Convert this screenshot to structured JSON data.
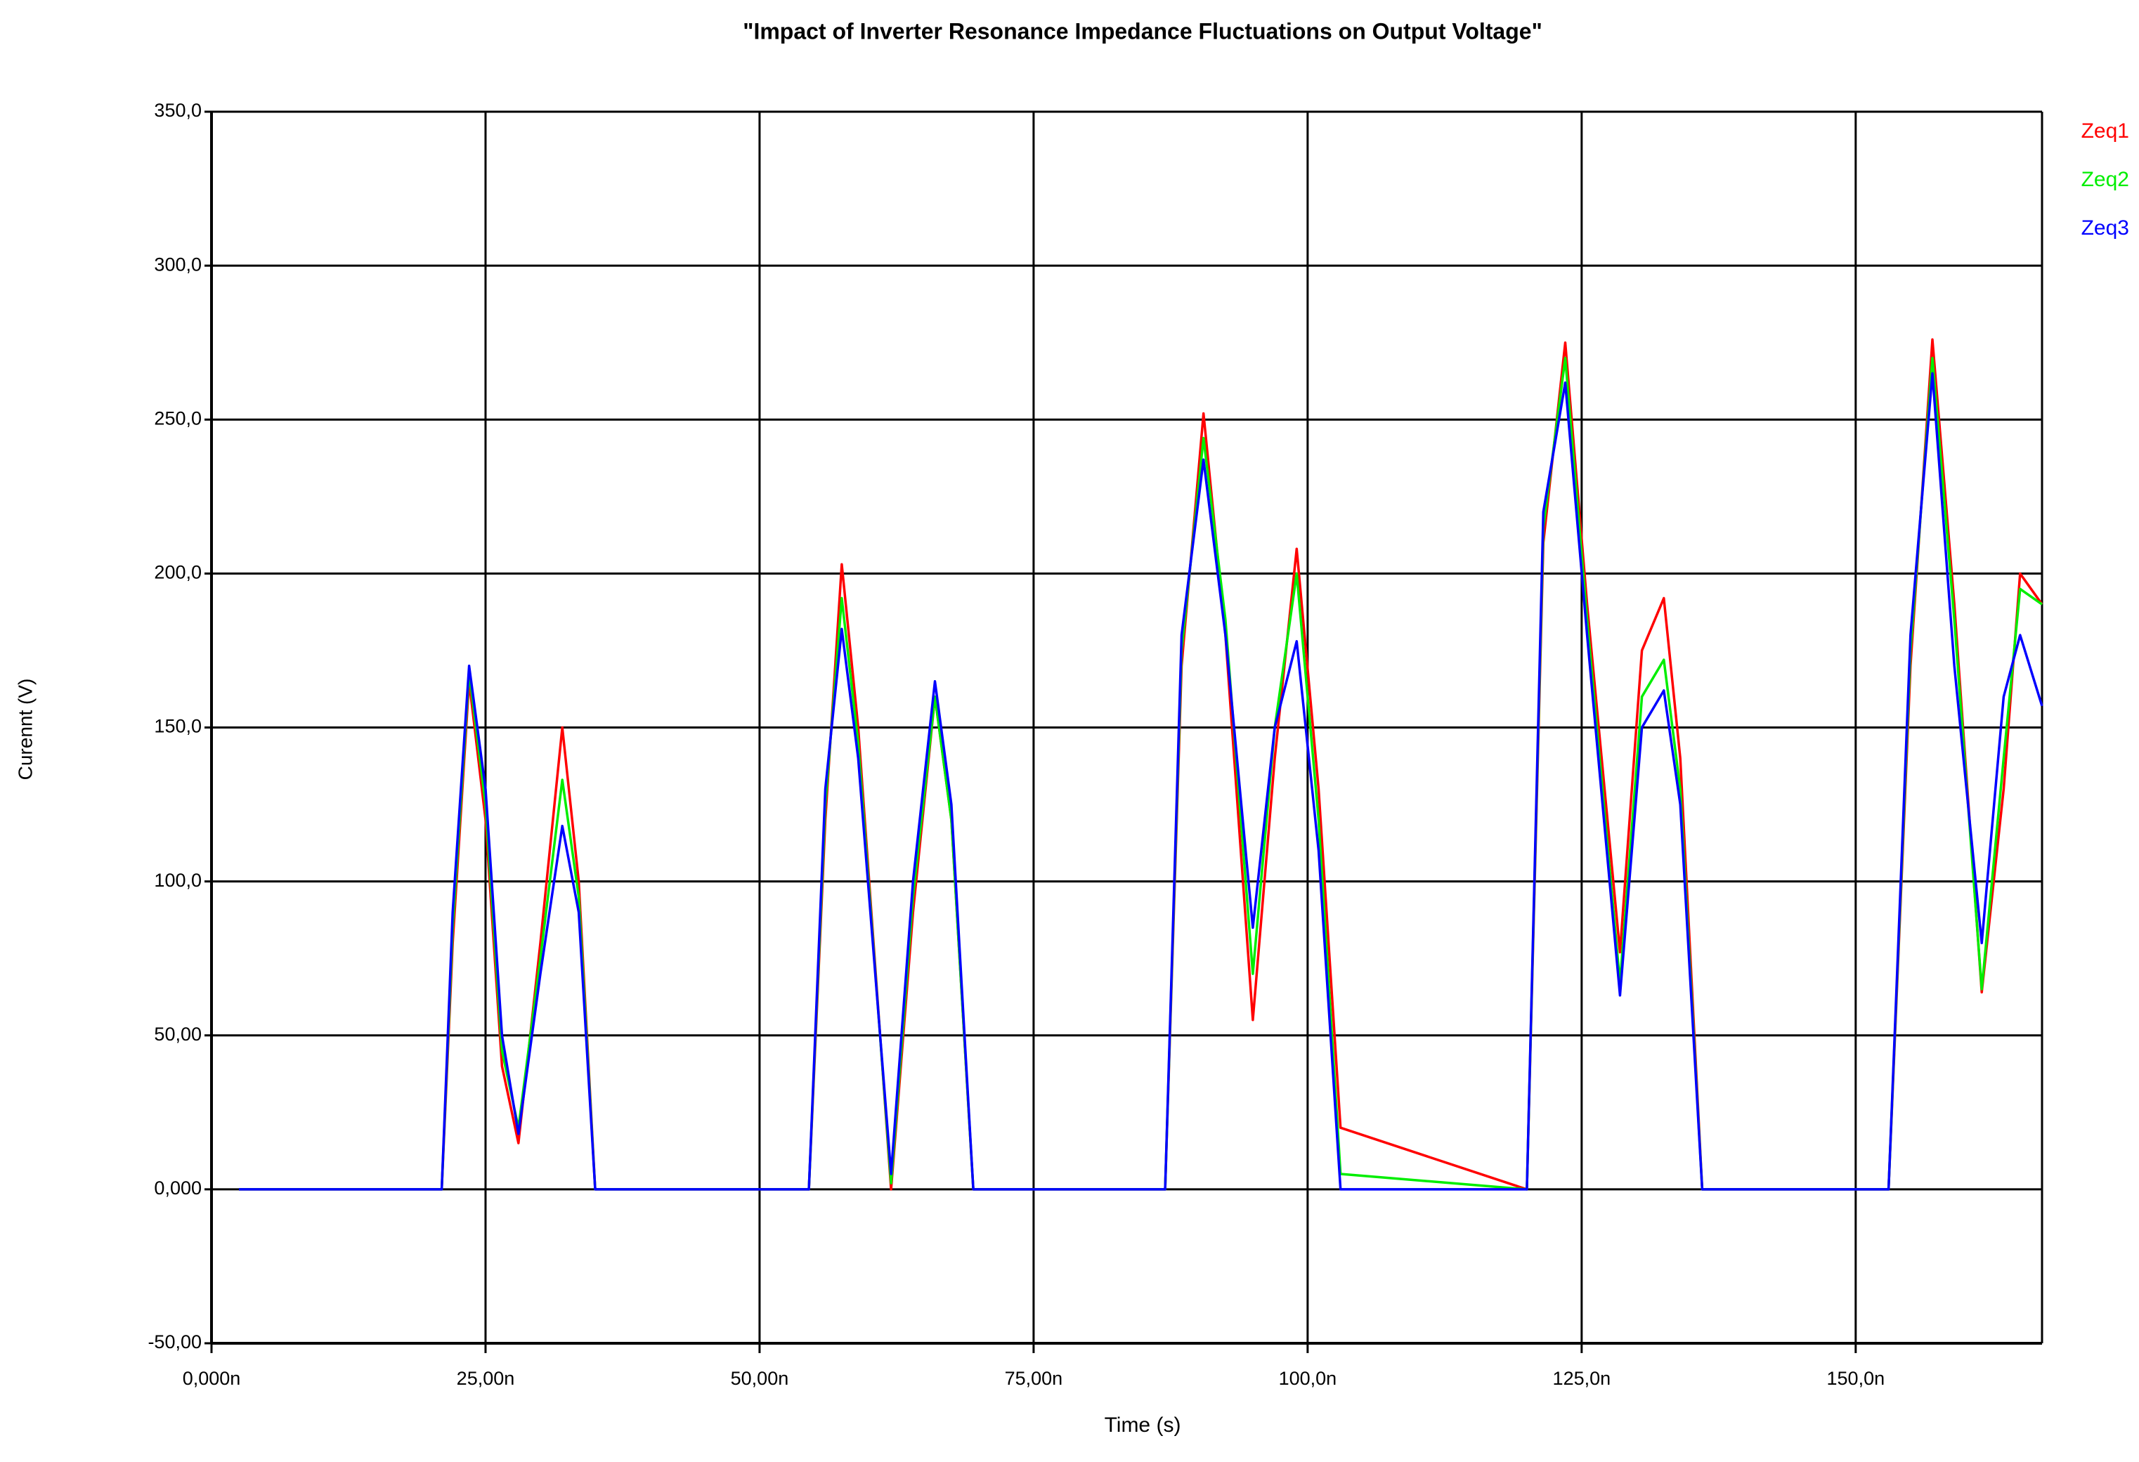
{
  "chart_data": {
    "type": "line",
    "title": "\"Impact of Inverter Resonance Impedance Fluctuations on Output Voltage\"",
    "x_label": "Time (s)",
    "y_label": "Curennt (V)",
    "x": [
      2.5,
      21,
      22,
      23.5,
      25,
      26.5,
      28,
      30,
      32,
      33.5,
      35,
      54.5,
      56,
      57.5,
      59,
      62,
      64,
      66,
      67.5,
      69.5,
      87,
      88.5,
      90.5,
      92.5,
      95,
      97,
      99,
      101,
      103,
      120,
      121.5,
      123.5,
      125.5,
      128.5,
      130.5,
      132.5,
      134,
      136,
      153,
      155,
      157,
      159,
      161.5,
      163.5,
      165,
      167
    ],
    "series": [
      {
        "name": "Zeq1",
        "color": "#ff0000",
        "values": [
          0,
          0,
          80,
          165,
          120,
          40,
          15,
          80,
          150,
          100,
          0,
          0,
          120,
          203,
          150,
          0,
          90,
          160,
          120,
          0,
          0,
          170,
          252,
          180,
          55,
          140,
          208,
          130,
          20,
          0,
          210,
          275,
          190,
          77,
          175,
          192,
          140,
          0,
          0,
          170,
          276,
          190,
          64,
          130,
          200,
          190
        ]
      },
      {
        "name": "Zeq2",
        "color": "#00ee00",
        "values": [
          0,
          0,
          85,
          168,
          125,
          45,
          20,
          75,
          133,
          95,
          0,
          0,
          125,
          192,
          145,
          2,
          95,
          160,
          120,
          0,
          0,
          175,
          244,
          185,
          70,
          150,
          200,
          120,
          5,
          0,
          215,
          270,
          185,
          67,
          160,
          172,
          130,
          0,
          0,
          175,
          270,
          185,
          65,
          140,
          195,
          190
        ]
      },
      {
        "name": "Zeq3",
        "color": "#0000ff",
        "values": [
          0,
          0,
          90,
          170,
          130,
          50,
          18,
          70,
          118,
          90,
          0,
          0,
          130,
          182,
          140,
          5,
          100,
          165,
          125,
          0,
          0,
          180,
          237,
          180,
          85,
          150,
          178,
          110,
          0,
          0,
          220,
          262,
          180,
          63,
          150,
          162,
          125,
          0,
          0,
          180,
          265,
          170,
          80,
          160,
          180,
          157
        ]
      }
    ],
    "xlim": [
      0,
      167
    ],
    "xticks": [
      {
        "value": 0,
        "label": "0,000n"
      },
      {
        "value": 25,
        "label": "25,00n"
      },
      {
        "value": 50,
        "label": "50,00n"
      },
      {
        "value": 75,
        "label": "75,00n"
      },
      {
        "value": 100,
        "label": "100,0n"
      },
      {
        "value": 125,
        "label": "125,0n"
      },
      {
        "value": 150,
        "label": "150,0n"
      }
    ],
    "ylim": [
      -50,
      350
    ],
    "yticks": [
      {
        "value": -50,
        "label": "-50,00"
      },
      {
        "value": 0,
        "label": "0,000"
      },
      {
        "value": 50,
        "label": "50,00"
      },
      {
        "value": 100,
        "label": "100,0"
      },
      {
        "value": 150,
        "label": "150,0"
      },
      {
        "value": 200,
        "label": "200,0"
      },
      {
        "value": 250,
        "label": "250,0"
      },
      {
        "value": 300,
        "label": "300,0"
      },
      {
        "value": 350,
        "label": "350,0"
      }
    ],
    "grid": true,
    "legend_position": "top-right"
  }
}
